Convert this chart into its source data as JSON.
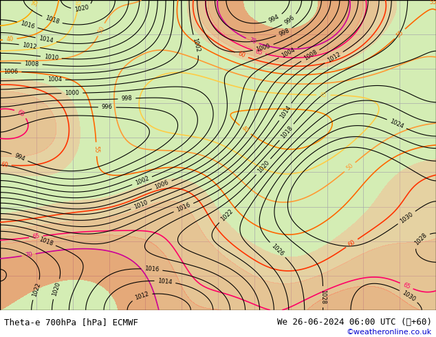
{
  "title_left": "Theta-e 700hPa [hPa] ECMWF",
  "title_right": "We 26-06-2024 06:00 UTC (˸+60)",
  "credit": "©weatheronline.co.uk",
  "bg_color": "#d4edb4",
  "grid_color": "#aaaaaa",
  "border_color": "#000000",
  "fig_width": 6.34,
  "fig_height": 4.9,
  "dpi": 100,
  "bottom_bar_color": "#ffffff",
  "bottom_bar_height": 0.08,
  "title_fontsize": 9,
  "credit_fontsize": 8,
  "credit_color": "#0000cc"
}
